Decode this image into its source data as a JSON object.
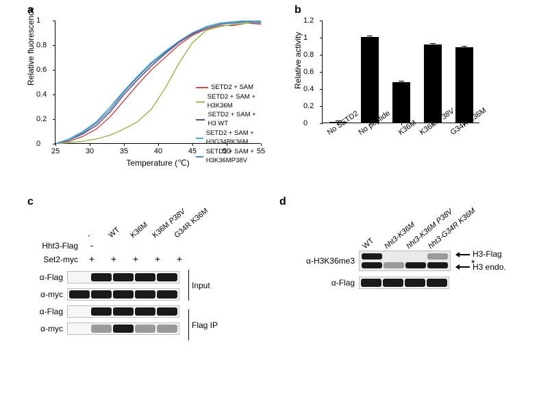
{
  "panel_a": {
    "label": "a",
    "type": "line",
    "xlabel": "Temperature (℃)",
    "ylabel": "Relative fluorescence",
    "xlim": [
      25,
      55
    ],
    "ylim": [
      0,
      1
    ],
    "xticks": [
      25,
      30,
      35,
      40,
      45,
      50,
      55
    ],
    "yticks": [
      0,
      0.2,
      0.4,
      0.6,
      0.8,
      1
    ],
    "background_color": "#ffffff",
    "axis_color": "#000000",
    "label_fontsize": 12,
    "tick_fontsize": 11,
    "line_width": 1.5,
    "series": [
      {
        "name": "SETD2 + SAM",
        "color": "#c0504d",
        "x": [
          25,
          27,
          29,
          31,
          33,
          35,
          37,
          39,
          41,
          43,
          45,
          47,
          49,
          51,
          53,
          55
        ],
        "y": [
          0.0,
          0.02,
          0.06,
          0.12,
          0.22,
          0.35,
          0.48,
          0.6,
          0.7,
          0.8,
          0.88,
          0.93,
          0.96,
          0.96,
          0.98,
          0.97
        ]
      },
      {
        "name": "SETD2 + SAM + H3K36M",
        "color": "#9bbb59",
        "x": [
          25,
          27,
          29,
          31,
          33,
          35,
          37,
          39,
          41,
          43,
          45,
          47,
          49,
          51,
          53,
          55
        ],
        "y": [
          0.0,
          0.01,
          0.02,
          0.04,
          0.07,
          0.12,
          0.18,
          0.28,
          0.45,
          0.65,
          0.82,
          0.92,
          0.95,
          0.97,
          0.98,
          0.99
        ]
      },
      {
        "name": "SETD2 + SAM + H3 WT",
        "color": "#604a7b",
        "x": [
          25,
          27,
          29,
          31,
          33,
          35,
          37,
          39,
          41,
          43,
          45,
          47,
          49,
          51,
          53,
          55
        ],
        "y": [
          0.0,
          0.03,
          0.08,
          0.15,
          0.26,
          0.4,
          0.52,
          0.63,
          0.73,
          0.82,
          0.89,
          0.94,
          0.97,
          0.99,
          0.99,
          1.0
        ]
      },
      {
        "name": "SETD2 + SAM + H3G34RK36M",
        "color": "#4bacc6",
        "x": [
          25,
          27,
          29,
          31,
          33,
          35,
          37,
          39,
          41,
          43,
          45,
          47,
          49,
          51,
          53,
          55
        ],
        "y": [
          0.0,
          0.04,
          0.1,
          0.18,
          0.3,
          0.43,
          0.55,
          0.66,
          0.75,
          0.83,
          0.9,
          0.95,
          0.98,
          0.99,
          1.0,
          0.99
        ]
      },
      {
        "name": "SETD2 + SAM + H3K36MP38V",
        "color": "#4f81bd",
        "x": [
          25,
          27,
          29,
          31,
          33,
          35,
          37,
          39,
          41,
          43,
          45,
          47,
          49,
          51,
          53,
          55
        ],
        "y": [
          0.0,
          0.03,
          0.09,
          0.17,
          0.28,
          0.42,
          0.54,
          0.65,
          0.74,
          0.83,
          0.9,
          0.94,
          0.97,
          0.98,
          0.99,
          0.98
        ]
      }
    ]
  },
  "panel_b": {
    "label": "b",
    "type": "bar",
    "ylabel": "Relative activity",
    "categories": [
      "No SETD2",
      "No peptide",
      "K36M",
      "K36M P38V",
      "G34R K36M"
    ],
    "values": [
      0.01,
      1.0,
      0.47,
      0.91,
      0.88
    ],
    "errors": [
      0.01,
      0.01,
      0.01,
      0.01,
      0.01
    ],
    "ylim": [
      0,
      1.2
    ],
    "ytick_step": 0.2,
    "yticks": [
      0,
      0.2,
      0.4,
      0.6,
      0.8,
      1,
      1.2
    ],
    "bar_color": "#000000",
    "bar_width": 0.55,
    "background_color": "#ffffff",
    "label_fontsize": 12,
    "tick_fontsize": 11,
    "cat_styles": [
      "normal",
      "normal",
      "normal",
      "italic-second",
      "normal"
    ]
  },
  "panel_c": {
    "label": "c",
    "columns": [
      "-",
      "WT",
      "K36M",
      "K36M P38V",
      "G34R K36M"
    ],
    "hht3_label": "Hht3-Flag",
    "set2_label": "Set2-myc",
    "set2_marks": [
      "+",
      "+",
      "+",
      "+",
      "+"
    ],
    "groups": [
      {
        "name": "Input",
        "rows": [
          {
            "ab": "α-Flag",
            "bands": [
              "none",
              "dark",
              "dark",
              "dark",
              "dark"
            ]
          },
          {
            "ab": "α-myc",
            "bands": [
              "dark",
              "dark",
              "dark",
              "dark",
              "dark"
            ]
          }
        ]
      },
      {
        "name": "Flag IP",
        "rows": [
          {
            "ab": "α-Flag",
            "bands": [
              "none",
              "dark",
              "dark",
              "dark",
              "dark"
            ]
          },
          {
            "ab": "α-myc",
            "bands": [
              "none",
              "faint",
              "dark",
              "faint",
              "faint"
            ]
          }
        ]
      }
    ]
  },
  "panel_d": {
    "label": "d",
    "columns": [
      "WT",
      "hht3-K36M",
      "hht3-K36M P38V",
      "hht3-G34R K36M"
    ],
    "col_style": [
      "normal",
      "italic",
      "italic",
      "italic"
    ],
    "rows": [
      {
        "ab": "α-H3K36me3",
        "double": true,
        "top_bands": [
          "dark",
          "none",
          "none",
          "faint"
        ],
        "bot_bands": [
          "dark",
          "faint",
          "dark",
          "dark"
        ],
        "annot_top": "H3-Flag",
        "annot_bot": "H3 endo.",
        "asterisk": "*"
      },
      {
        "ab": "α-Flag",
        "double": false,
        "bands": [
          "dark",
          "dark",
          "dark",
          "dark"
        ]
      }
    ]
  }
}
